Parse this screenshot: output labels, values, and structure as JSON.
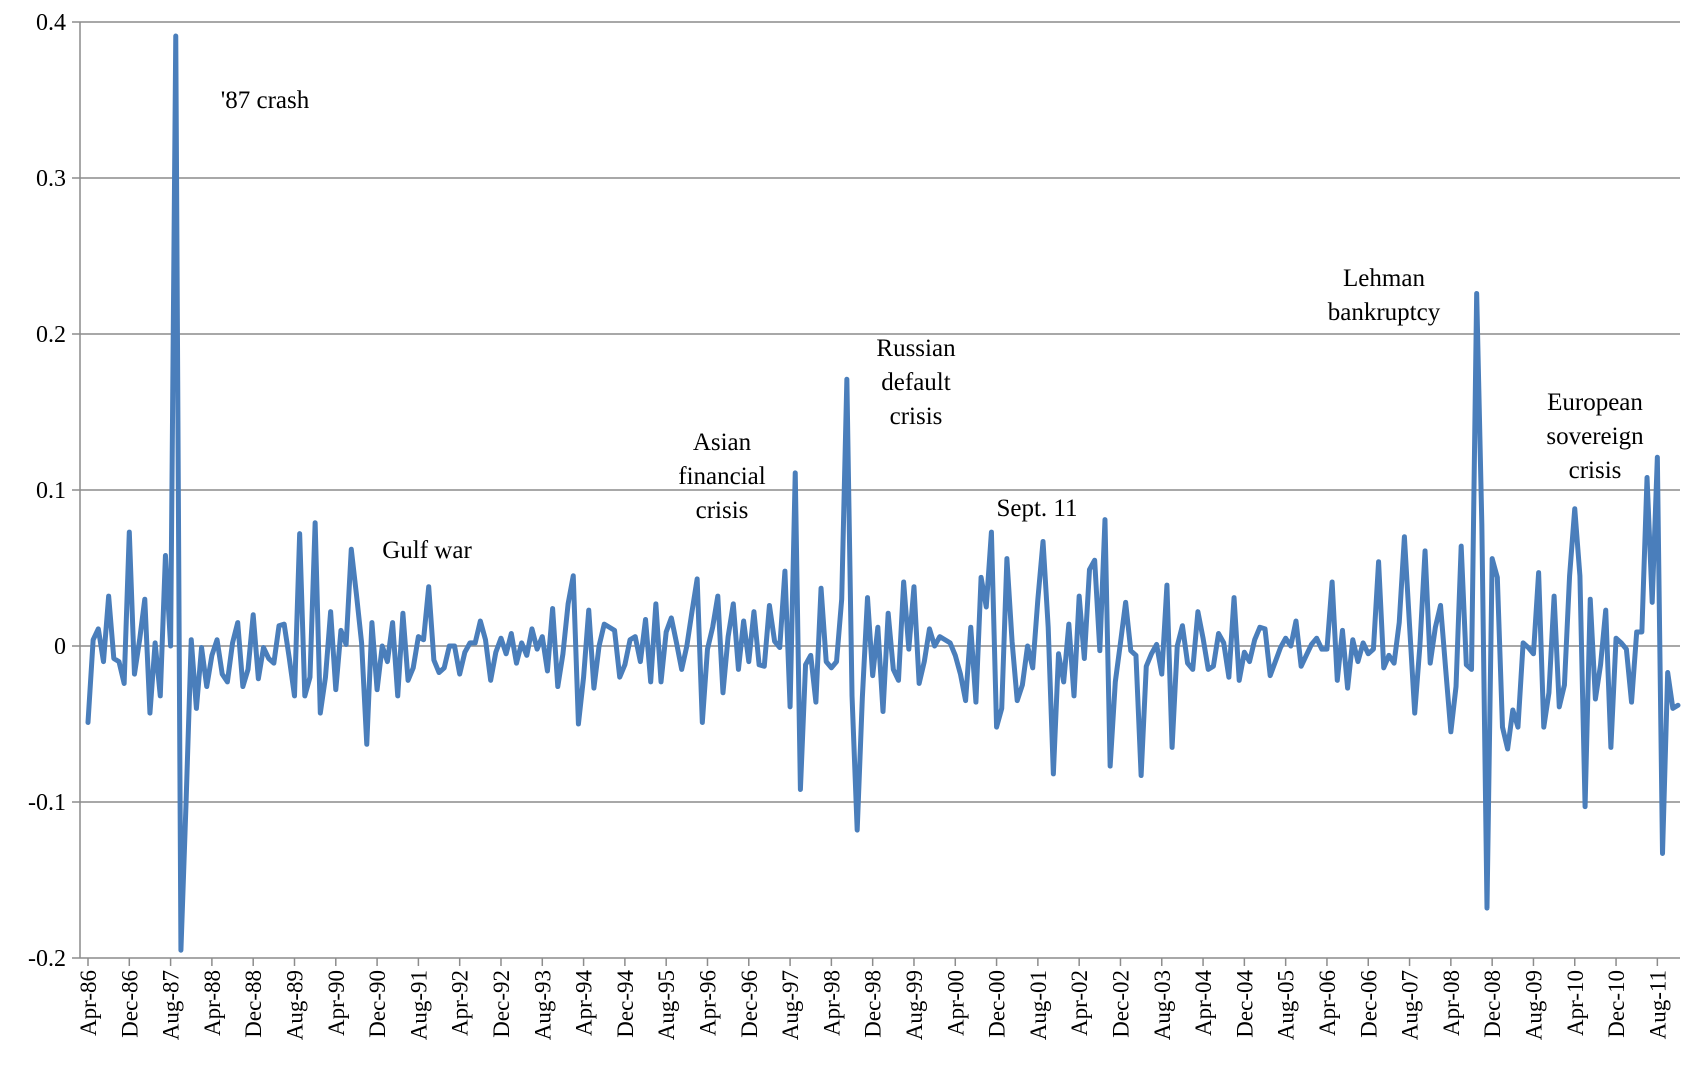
{
  "chart_data": {
    "type": "line",
    "title": "",
    "xlabel": "",
    "ylabel": "",
    "ylim": [
      -0.2,
      0.4
    ],
    "y_ticks": [
      "-0.2",
      "-0.1",
      "0",
      "0.1",
      "0.2",
      "0.3",
      "0.4"
    ],
    "grid": "horizontal",
    "legend": "none",
    "series_color": "#4a7ebb",
    "x_start": "Apr-86",
    "x_end": "Dec-11",
    "x_tick_labels": [
      "Apr-86",
      "Dec-86",
      "Aug-87",
      "Apr-88",
      "Dec-88",
      "Aug-89",
      "Apr-90",
      "Dec-90",
      "Aug-91",
      "Apr-92",
      "Dec-92",
      "Aug-93",
      "Apr-94",
      "Dec-94",
      "Aug-95",
      "Apr-96",
      "Dec-96",
      "Aug-97",
      "Apr-98",
      "Dec-98",
      "Aug-99",
      "Apr-00",
      "Dec-00",
      "Aug-01",
      "Apr-02",
      "Dec-02",
      "Aug-03",
      "Apr-04",
      "Dec-04",
      "Aug-05",
      "Apr-06",
      "Dec-06",
      "Aug-07",
      "Apr-08",
      "Dec-08",
      "Aug-09",
      "Apr-10",
      "Dec-10",
      "Aug-11"
    ],
    "series": [
      {
        "values": [
          -0.049,
          0.004,
          0.011,
          -0.01,
          0.032,
          -0.008,
          -0.01,
          -0.024,
          0.073,
          -0.018,
          0.004,
          0.03,
          -0.043,
          0.002,
          -0.032,
          0.058,
          0.0,
          0.391,
          -0.195,
          -0.1,
          0.004,
          -0.04,
          -0.001,
          -0.026,
          -0.006,
          0.004,
          -0.018,
          -0.023,
          0.002,
          0.015,
          -0.026,
          -0.015,
          0.02,
          -0.021,
          -0.001,
          -0.008,
          -0.011,
          0.013,
          0.014,
          -0.008,
          -0.032,
          0.072,
          -0.032,
          -0.02,
          0.079,
          -0.043,
          -0.02,
          0.022,
          -0.028,
          0.01,
          0.001,
          0.062,
          0.033,
          0.002,
          -0.063,
          0.015,
          -0.028,
          0.0,
          -0.01,
          0.015,
          -0.032,
          0.021,
          -0.022,
          -0.014,
          0.006,
          0.004,
          0.038,
          -0.009,
          -0.017,
          -0.014,
          0.0,
          0.0,
          -0.018,
          -0.004,
          0.002,
          0.002,
          0.016,
          0.004,
          -0.022,
          -0.004,
          0.005,
          -0.005,
          0.008,
          -0.011,
          0.002,
          -0.006,
          0.011,
          -0.002,
          0.006,
          -0.016,
          0.024,
          -0.026,
          -0.005,
          0.027,
          0.045,
          -0.05,
          -0.02,
          0.023,
          -0.027,
          0.0,
          0.014,
          0.012,
          0.01,
          -0.02,
          -0.012,
          0.004,
          0.006,
          -0.01,
          0.017,
          -0.023,
          0.027,
          -0.023,
          0.009,
          0.018,
          0.002,
          -0.015,
          0.0,
          0.022,
          0.043,
          -0.049,
          -0.002,
          0.012,
          0.032,
          -0.03,
          0.006,
          0.027,
          -0.015,
          0.016,
          -0.01,
          0.022,
          -0.012,
          -0.013,
          0.026,
          0.003,
          -0.001,
          0.048,
          -0.039,
          0.111,
          -0.092,
          -0.012,
          -0.006,
          -0.036,
          0.037,
          -0.01,
          -0.014,
          -0.01,
          0.03,
          0.171,
          -0.032,
          -0.118,
          -0.033,
          0.031,
          -0.019,
          0.012,
          -0.042,
          0.021,
          -0.015,
          -0.022,
          0.041,
          -0.002,
          0.038,
          -0.024,
          -0.01,
          0.011,
          0.0,
          0.006,
          0.004,
          0.002,
          -0.006,
          -0.018,
          -0.035,
          0.012,
          -0.036,
          0.044,
          0.025,
          0.073,
          -0.052,
          -0.04,
          0.056,
          0.003,
          -0.035,
          -0.025,
          0.0,
          -0.014,
          0.03,
          0.067,
          0.012,
          -0.082,
          -0.005,
          -0.023,
          0.014,
          -0.032,
          0.032,
          -0.008,
          0.049,
          0.055,
          -0.003,
          0.081,
          -0.077,
          -0.023,
          0.002,
          0.028,
          -0.003,
          -0.006,
          -0.083,
          -0.013,
          -0.005,
          0.001,
          -0.018,
          0.039,
          -0.065,
          0.0,
          0.013,
          -0.011,
          -0.015,
          0.022,
          0.005,
          -0.015,
          -0.013,
          0.008,
          0.002,
          -0.02,
          0.031,
          -0.022,
          -0.004,
          -0.01,
          0.004,
          0.012,
          0.011,
          -0.019,
          -0.01,
          -0.001,
          0.005,
          0.0,
          0.016,
          -0.013,
          -0.006,
          0.001,
          0.005,
          -0.002,
          -0.002,
          0.041,
          -0.022,
          0.01,
          -0.027,
          0.004,
          -0.01,
          0.002,
          -0.005,
          -0.002,
          0.054,
          -0.014,
          -0.006,
          -0.011,
          0.015,
          0.07,
          0.013,
          -0.043,
          0.0,
          0.061,
          -0.011,
          0.012,
          0.026,
          -0.015,
          -0.055,
          -0.026,
          0.064,
          -0.012,
          -0.015,
          0.226,
          0.078,
          -0.168,
          0.056,
          0.044,
          -0.052,
          -0.066,
          -0.041,
          -0.052,
          0.002,
          -0.001,
          -0.005,
          0.047,
          -0.052,
          -0.03,
          0.032,
          -0.039,
          -0.025,
          0.045,
          0.088,
          0.045,
          -0.103,
          0.03,
          -0.034,
          -0.012,
          0.023,
          -0.065,
          0.005,
          0.002,
          -0.002,
          -0.036,
          0.009,
          0.009,
          0.108,
          0.028,
          0.121,
          -0.133,
          -0.017,
          -0.04,
          -0.038
        ]
      }
    ]
  },
  "annotations": [
    {
      "id": "crash87",
      "lines": [
        "'87 crash"
      ]
    },
    {
      "id": "gulf",
      "lines": [
        "Gulf war"
      ]
    },
    {
      "id": "asian",
      "lines": [
        "Asian",
        "financial",
        "crisis"
      ]
    },
    {
      "id": "russian",
      "lines": [
        "Russian",
        "default",
        "crisis"
      ]
    },
    {
      "id": "sept11",
      "lines": [
        "Sept. 11"
      ]
    },
    {
      "id": "lehman",
      "lines": [
        "Lehman",
        "bankruptcy"
      ]
    },
    {
      "id": "european",
      "lines": [
        "European",
        "sovereign",
        "crisis"
      ]
    }
  ]
}
